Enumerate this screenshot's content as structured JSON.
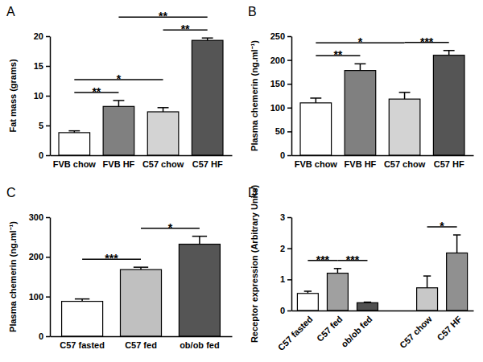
{
  "chart_data": [
    {
      "type": "bar",
      "title": "A",
      "y_label": "Fat mass (grams)",
      "categories": [
        "FVB chow",
        "FVB HF",
        "C57 chow",
        "C57 HF"
      ],
      "values": [
        3.8,
        8.2,
        7.3,
        19.3
      ],
      "errors": [
        0.3,
        1.0,
        0.7,
        0.4
      ],
      "colors": [
        "#ffffff",
        "#808080",
        "#d3d3d3",
        "#555555"
      ],
      "ylim": [
        0,
        20
      ],
      "yticks": [
        0,
        5,
        10,
        15,
        20
      ],
      "annotations": [
        {
          "text": "**",
          "from": 0,
          "to": 1
        },
        {
          "text": "*",
          "from": 0,
          "to": 2
        },
        {
          "text": "**",
          "from": 1,
          "to": 3
        },
        {
          "text": "**",
          "from": 2,
          "to": 3
        }
      ]
    },
    {
      "type": "bar",
      "title": "B",
      "y_label": "Plasma chemerin (ng.ml⁻¹)",
      "categories": [
        "FVB chow",
        "FVB HF",
        "C57 chow",
        "C57 HF"
      ],
      "values": [
        110,
        178,
        118,
        210
      ],
      "errors": [
        10,
        14,
        14,
        10
      ],
      "colors": [
        "#ffffff",
        "#808080",
        "#d3d3d3",
        "#555555"
      ],
      "ylim": [
        0,
        250
      ],
      "yticks": [
        0,
        50,
        100,
        150,
        200,
        250
      ],
      "annotations": [
        {
          "text": "**",
          "from": 0,
          "to": 1
        },
        {
          "text": "*",
          "from": 0,
          "to": 2
        },
        {
          "text": "***",
          "from": 2,
          "to": 3
        }
      ]
    },
    {
      "type": "bar",
      "title": "C",
      "y_label": "Plasma chemerin (ng.ml⁻¹)",
      "categories": [
        "C57 fasted",
        "C57  fed",
        "ob/ob fed"
      ],
      "values": [
        88,
        168,
        232
      ],
      "errors": [
        6,
        6,
        20
      ],
      "colors": [
        "#ffffff",
        "#c0c0c0",
        "#555555"
      ],
      "ylim": [
        0,
        300
      ],
      "yticks": [
        0,
        100,
        200,
        300
      ],
      "annotations": [
        {
          "text": "***",
          "from": 0,
          "to": 1
        },
        {
          "text": "*",
          "from": 1,
          "to": 2
        }
      ]
    },
    {
      "type": "bar",
      "title": "D",
      "y_label": "Receptor expression (Arbitrary Units)",
      "categories": [
        "C57 fasted",
        "C57 fed",
        "ob/ob fed",
        null,
        "C57 chow",
        "C57 HF"
      ],
      "values": [
        0.55,
        1.2,
        0.25,
        null,
        0.73,
        1.85
      ],
      "errors": [
        0.07,
        0.15,
        0.02,
        null,
        0.38,
        0.58
      ],
      "colors": [
        "#ffffff",
        "#a0a0a0",
        "#505050",
        null,
        "#c8c8c8",
        "#909090"
      ],
      "ylim": [
        0,
        3
      ],
      "yticks": [
        0,
        1,
        2,
        3
      ],
      "annotations": [
        {
          "text": "***",
          "from": 0,
          "to": 1
        },
        {
          "text": "***",
          "from": 1,
          "to": 2
        },
        {
          "text": "*",
          "from": 4,
          "to": 5
        }
      ]
    }
  ]
}
